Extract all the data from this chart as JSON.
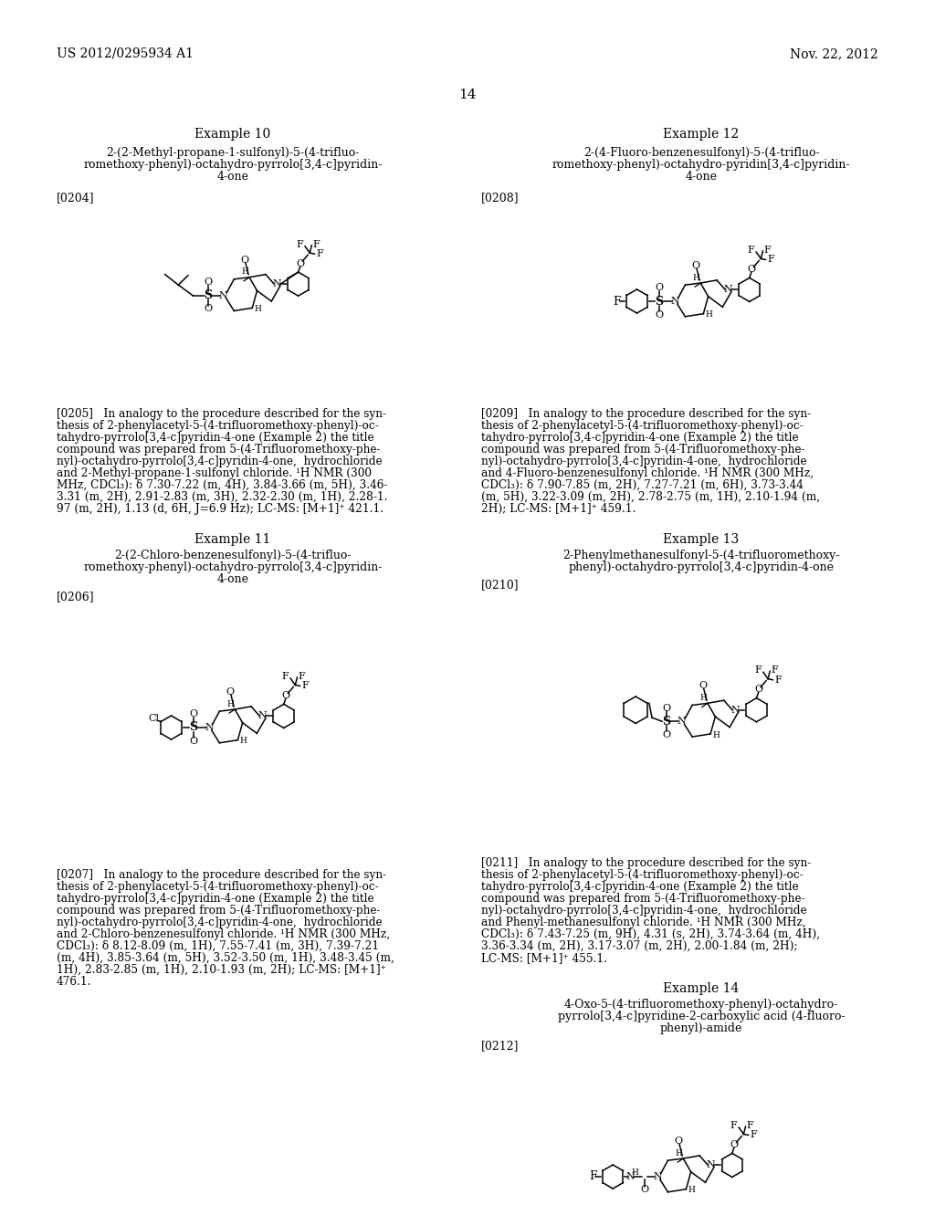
{
  "bg_color": "#ffffff",
  "header_left": "US 2012/0295934 A1",
  "header_right": "Nov. 22, 2012",
  "page_number": "14",
  "example10_title": "Example 10",
  "example10_line1": "2-(2-Methyl-propane-1-sulfonyl)-5-(4-trifluo-",
  "example10_line2": "romethoxy-phenyl)-octahydro-pyrrolo[3,4-c]pyridin-",
  "example10_line3": "4-one",
  "example10_ref": "[0204]",
  "example10_para": "[0205]   In analogy to the procedure described for the syn-\nthesis of 2-phenylacetyl-5-(4-trifluoromethoxy-phenyl)-oc-\ntahydro-pyrrolo[3,4-c]pyridin-4-one (Example 2) the title\ncompound was prepared from 5-(4-Trifluoromethoxy-phe-\nnyl)-octahydro-pyrrolo[3,4-c]pyridin-4-one,  hydrochloride\nand 2-Methyl-propane-1-sulfonyl chloride. ¹H NMR (300\nMHz, CDCl₃): δ 7.30-7.22 (m, 4H), 3.84-3.66 (m, 5H), 3.46-\n3.31 (m, 2H), 2.91-2.83 (m, 3H), 2.32-2.30 (m, 1H), 2.28-1.\n97 (m, 2H), 1.13 (d, 6H, J=6.9 Hz); LC-MS: [M+1]⁺ 421.1.",
  "example11_title": "Example 11",
  "example11_line1": "2-(2-Chloro-benzenesulfonyl)-5-(4-trifluo-",
  "example11_line2": "romethoxy-phenyl)-octahydro-pyrrolo[3,4-c]pyridin-",
  "example11_line3": "4-one",
  "example11_ref": "[0206]",
  "example11_para": "[0207]   In analogy to the procedure described for the syn-\nthesis of 2-phenylacetyl-5-(4-trifluoromethoxy-phenyl)-oc-\ntahydro-pyrrolo[3,4-c]pyridin-4-one (Example 2) the title\ncompound was prepared from 5-(4-Trifluoromethoxy-phe-\nnyl)-octahydro-pyrrolo[3,4-c]pyridin-4-one,  hydrochloride\nand 2-Chloro-benzenesulfonyl chloride. ¹H NMR (300 MHz,\nCDCl₃): δ 8.12-8.09 (m, 1H), 7.55-7.41 (m, 3H), 7.39-7.21\n(m, 4H), 3.85-3.64 (m, 5H), 3.52-3.50 (m, 1H), 3.48-3.45 (m,\n1H), 2.83-2.85 (m, 1H), 2.10-1.93 (m, 2H); LC-MS: [M+1]⁺\n476.1.",
  "example12_title": "Example 12",
  "example12_line1": "2-(4-Fluoro-benzenesulfonyl)-5-(4-trifluo-",
  "example12_line2": "romethoxy-phenyl)-octahydro-pyridin[3,4-c]pyridin-",
  "example12_line3": "4-one",
  "example12_ref": "[0208]",
  "example12_para": "[0209]   In analogy to the procedure described for the syn-\nthesis of 2-phenylacetyl-5-(4-trifluoromethoxy-phenyl)-oc-\ntahydro-pyrrolo[3,4-c]pyridin-4-one (Example 2) the title\ncompound was prepared from 5-(4-Trifluoromethoxy-phe-\nnyl)-octahydro-pyrrolo[3,4-c]pyridin-4-one,  hydrochloride\nand 4-Fluoro-benzenesulfonyl chloride. ¹H NMR (300 MHz,\nCDCl₃): δ 7.90-7.85 (m, 2H), 7.27-7.21 (m, 6H), 3.73-3.44\n(m, 5H), 3.22-3.09 (m, 2H), 2.78-2.75 (m, 1H), 2.10-1.94 (m,\n2H); LC-MS: [M+1]⁺ 459.1.",
  "example13_title": "Example 13",
  "example13_line1": "2-Phenylmethanesulfonyl-5-(4-trifluoromethoxy-",
  "example13_line2": "phenyl)-octahydro-pyrrolo[3,4-c]pyridin-4-one",
  "example13_ref": "[0210]",
  "example13_para": "[0211]   In analogy to the procedure described for the syn-\nthesis of 2-phenylacetyl-5-(4-trifluoromethoxy-phenyl)-oc-\ntahydro-pyrrolo[3,4-c]pyridin-4-one (Example 2) the title\ncompound was prepared from 5-(4-Trifluoromethoxy-phe-\nnyl)-octahydro-pyrrolo[3,4-c]pyridin-4-one,  hydrochloride\nand Phenyl-methanesulfonyl chloride. ¹H NMR (300 MHz,\nCDCl₃): δ 7.43-7.25 (m, 9H), 4.31 (s, 2H), 3.74-3.64 (m, 4H),\n3.36-3.34 (m, 2H), 3.17-3.07 (m, 2H), 2.00-1.84 (m, 2H);\nLC-MS: [M+1]⁺ 455.1.",
  "example14_title": "Example 14",
  "example14_line1": "4-Oxo-5-(4-trifluoromethoxy-phenyl)-octahydro-",
  "example14_line2": "pyrrolo[3,4-c]pyridine-2-carboxylic acid (4-fluoro-",
  "example14_line3": "phenyl)-amide",
  "example14_ref": "[0212]"
}
